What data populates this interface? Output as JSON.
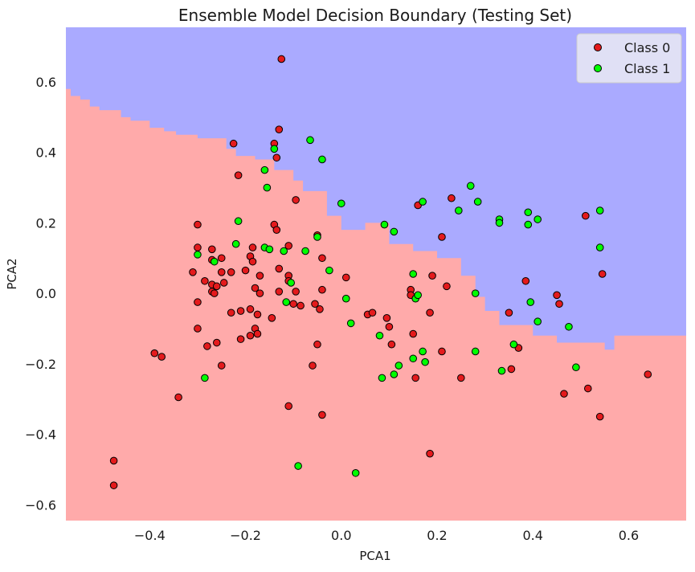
{
  "chart_data": {
    "type": "scatter",
    "title": "Ensemble Model Decision Boundary (Testing Set)",
    "xlabel": "PCA1",
    "ylabel": "PCA2",
    "xlim": [
      -0.575,
      0.72
    ],
    "ylim": [
      -0.645,
      0.755
    ],
    "xticks": [
      -0.4,
      -0.2,
      0.0,
      0.2,
      0.4,
      0.6
    ],
    "yticks": [
      -0.6,
      -0.4,
      -0.2,
      0.0,
      0.2,
      0.4,
      0.6
    ],
    "xtick_labels": [
      "−0.4",
      "−0.2",
      "0.0",
      "0.2",
      "0.4",
      "0.6"
    ],
    "ytick_labels": [
      "−0.6",
      "−0.4",
      "−0.2",
      "0.0",
      "0.2",
      "0.4",
      "0.6"
    ],
    "grid": false,
    "legend": "top-right",
    "colors": {
      "region_class0": "#ffaaaa",
      "region_class1": "#aaaaff",
      "class0_point": "#e41a1c",
      "class1_point": "#00ff00",
      "point_edge": "#000000"
    },
    "boundary": [
      [
        -0.575,
        0.58
      ],
      [
        -0.565,
        0.56
      ],
      [
        -0.545,
        0.55
      ],
      [
        -0.525,
        0.53
      ],
      [
        -0.505,
        0.52
      ],
      [
        -0.48,
        0.52
      ],
      [
        -0.46,
        0.5
      ],
      [
        -0.44,
        0.49
      ],
      [
        -0.42,
        0.49
      ],
      [
        -0.4,
        0.47
      ],
      [
        -0.37,
        0.46
      ],
      [
        -0.345,
        0.45
      ],
      [
        -0.32,
        0.45
      ],
      [
        -0.3,
        0.44
      ],
      [
        -0.25,
        0.44
      ],
      [
        -0.24,
        0.41
      ],
      [
        -0.22,
        0.39
      ],
      [
        -0.18,
        0.38
      ],
      [
        -0.14,
        0.35
      ],
      [
        -0.1,
        0.32
      ],
      [
        -0.08,
        0.29
      ],
      [
        -0.05,
        0.29
      ],
      [
        -0.03,
        0.22
      ],
      [
        0.0,
        0.18
      ],
      [
        0.05,
        0.2
      ],
      [
        0.1,
        0.14
      ],
      [
        0.15,
        0.12
      ],
      [
        0.2,
        0.1
      ],
      [
        0.25,
        0.05
      ],
      [
        0.28,
        -0.01
      ],
      [
        0.3,
        -0.05
      ],
      [
        0.33,
        -0.09
      ],
      [
        0.4,
        -0.12
      ],
      [
        0.45,
        -0.14
      ],
      [
        0.5,
        -0.14
      ],
      [
        0.55,
        -0.16
      ],
      [
        0.57,
        -0.12
      ],
      [
        0.72,
        -0.12
      ]
    ],
    "series": [
      {
        "name": "Class 0",
        "points": [
          [
            -0.125,
            0.665
          ],
          [
            -0.13,
            0.465
          ],
          [
            -0.225,
            0.425
          ],
          [
            -0.14,
            0.425
          ],
          [
            -0.135,
            0.385
          ],
          [
            -0.215,
            0.335
          ],
          [
            -0.095,
            0.265
          ],
          [
            0.23,
            0.27
          ],
          [
            0.16,
            0.25
          ],
          [
            -0.3,
            0.195
          ],
          [
            -0.14,
            0.195
          ],
          [
            -0.135,
            0.18
          ],
          [
            -0.05,
            0.165
          ],
          [
            0.21,
            0.16
          ],
          [
            0.51,
            0.22
          ],
          [
            -0.3,
            0.13
          ],
          [
            -0.27,
            0.125
          ],
          [
            -0.185,
            0.13
          ],
          [
            -0.11,
            0.135
          ],
          [
            -0.27,
            0.095
          ],
          [
            -0.25,
            0.1
          ],
          [
            -0.19,
            0.105
          ],
          [
            -0.185,
            0.09
          ],
          [
            -0.04,
            0.1
          ],
          [
            -0.31,
            0.06
          ],
          [
            -0.285,
            0.035
          ],
          [
            -0.25,
            0.06
          ],
          [
            -0.23,
            0.06
          ],
          [
            -0.2,
            0.065
          ],
          [
            -0.17,
            0.05
          ],
          [
            -0.13,
            0.07
          ],
          [
            -0.11,
            0.05
          ],
          [
            -0.27,
            0.025
          ],
          [
            -0.26,
            0.02
          ],
          [
            -0.245,
            0.03
          ],
          [
            -0.18,
            0.015
          ],
          [
            -0.17,
            0.0
          ],
          [
            -0.13,
            0.005
          ],
          [
            -0.11,
            0.035
          ],
          [
            -0.095,
            0.005
          ],
          [
            -0.04,
            0.01
          ],
          [
            0.01,
            0.045
          ],
          [
            -0.27,
            0.005
          ],
          [
            -0.265,
            0.0
          ],
          [
            0.145,
            0.01
          ],
          [
            0.145,
            -0.005
          ],
          [
            0.19,
            0.05
          ],
          [
            0.22,
            0.02
          ],
          [
            0.385,
            0.035
          ],
          [
            0.545,
            0.055
          ],
          [
            0.45,
            -0.005
          ],
          [
            0.455,
            -0.03
          ],
          [
            -0.3,
            -0.025
          ],
          [
            -0.1,
            -0.03
          ],
          [
            -0.085,
            -0.035
          ],
          [
            -0.055,
            -0.03
          ],
          [
            -0.045,
            -0.045
          ],
          [
            -0.23,
            -0.055
          ],
          [
            -0.21,
            -0.05
          ],
          [
            -0.19,
            -0.045
          ],
          [
            -0.175,
            -0.06
          ],
          [
            -0.145,
            -0.07
          ],
          [
            0.055,
            -0.06
          ],
          [
            0.065,
            -0.055
          ],
          [
            0.095,
            -0.07
          ],
          [
            0.1,
            -0.095
          ],
          [
            0.185,
            -0.055
          ],
          [
            0.35,
            -0.055
          ],
          [
            -0.3,
            -0.1
          ],
          [
            -0.18,
            -0.1
          ],
          [
            -0.19,
            -0.12
          ],
          [
            -0.175,
            -0.115
          ],
          [
            -0.21,
            -0.13
          ],
          [
            -0.28,
            -0.15
          ],
          [
            -0.26,
            -0.14
          ],
          [
            -0.05,
            -0.145
          ],
          [
            0.105,
            -0.145
          ],
          [
            0.15,
            -0.115
          ],
          [
            0.21,
            -0.165
          ],
          [
            0.37,
            -0.155
          ],
          [
            -0.39,
            -0.17
          ],
          [
            -0.375,
            -0.18
          ],
          [
            -0.25,
            -0.205
          ],
          [
            -0.06,
            -0.205
          ],
          [
            0.155,
            -0.24
          ],
          [
            0.25,
            -0.24
          ],
          [
            0.355,
            -0.215
          ],
          [
            0.64,
            -0.23
          ],
          [
            -0.34,
            -0.295
          ],
          [
            0.465,
            -0.285
          ],
          [
            0.515,
            -0.27
          ],
          [
            -0.11,
            -0.32
          ],
          [
            -0.04,
            -0.345
          ],
          [
            0.54,
            -0.35
          ],
          [
            0.185,
            -0.455
          ],
          [
            -0.475,
            -0.475
          ],
          [
            -0.475,
            -0.545
          ]
        ]
      },
      {
        "name": "Class 1",
        "points": [
          [
            -0.065,
            0.435
          ],
          [
            -0.14,
            0.41
          ],
          [
            -0.04,
            0.38
          ],
          [
            -0.16,
            0.35
          ],
          [
            -0.155,
            0.3
          ],
          [
            0.27,
            0.305
          ],
          [
            0.17,
            0.26
          ],
          [
            0.0,
            0.255
          ],
          [
            0.285,
            0.26
          ],
          [
            0.245,
            0.235
          ],
          [
            0.39,
            0.23
          ],
          [
            0.33,
            0.21
          ],
          [
            0.41,
            0.21
          ],
          [
            0.33,
            0.2
          ],
          [
            0.39,
            0.195
          ],
          [
            0.54,
            0.235
          ],
          [
            -0.215,
            0.205
          ],
          [
            0.09,
            0.195
          ],
          [
            0.11,
            0.175
          ],
          [
            -0.05,
            0.16
          ],
          [
            -0.22,
            0.14
          ],
          [
            -0.16,
            0.13
          ],
          [
            -0.15,
            0.125
          ],
          [
            -0.12,
            0.12
          ],
          [
            -0.075,
            0.12
          ],
          [
            -0.3,
            0.11
          ],
          [
            0.54,
            0.13
          ],
          [
            -0.265,
            0.09
          ],
          [
            -0.025,
            0.065
          ],
          [
            0.15,
            0.055
          ],
          [
            -0.105,
            0.03
          ],
          [
            -0.115,
            -0.025
          ],
          [
            0.01,
            -0.015
          ],
          [
            0.155,
            -0.015
          ],
          [
            0.16,
            -0.005
          ],
          [
            0.28,
            0.0
          ],
          [
            0.395,
            -0.025
          ],
          [
            0.02,
            -0.085
          ],
          [
            0.08,
            -0.12
          ],
          [
            0.41,
            -0.08
          ],
          [
            0.475,
            -0.095
          ],
          [
            0.17,
            -0.165
          ],
          [
            0.28,
            -0.165
          ],
          [
            0.36,
            -0.145
          ],
          [
            0.15,
            -0.185
          ],
          [
            0.175,
            -0.195
          ],
          [
            0.12,
            -0.205
          ],
          [
            0.335,
            -0.22
          ],
          [
            0.49,
            -0.21
          ],
          [
            -0.285,
            -0.24
          ],
          [
            0.085,
            -0.24
          ],
          [
            0.11,
            -0.23
          ],
          [
            -0.09,
            -0.49
          ],
          [
            0.03,
            -0.51
          ]
        ]
      }
    ]
  }
}
